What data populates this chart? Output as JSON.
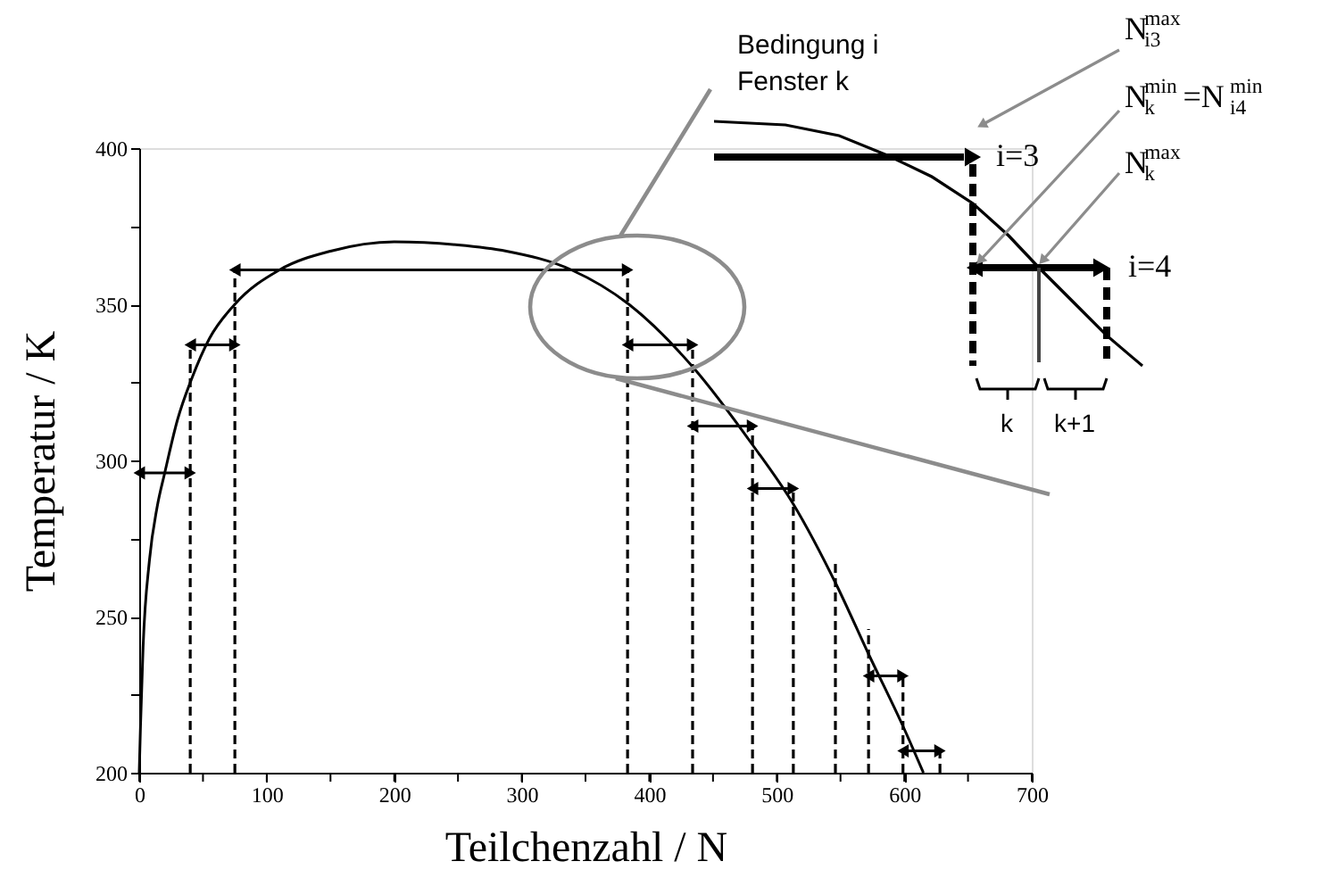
{
  "chart_data": {
    "type": "line",
    "xlabel": "Teilchenzahl / N",
    "ylabel": "Temperatur / K",
    "xlim": [
      0,
      700
    ],
    "ylim": [
      200,
      400
    ],
    "xticks": [
      0,
      {
        "value": 50,
        "label": null
      },
      100,
      {
        "value": 150,
        "label": null
      },
      200,
      {
        "value": 250,
        "label": null
      },
      300,
      {
        "value": 350,
        "label": null
      },
      400,
      {
        "value": 450,
        "label": null
      },
      500,
      {
        "value": 550,
        "label": null
      },
      600,
      {
        "value": 650,
        "label": null
      },
      700
    ],
    "yticks": [
      200,
      {
        "value": 225,
        "label": null
      },
      250,
      {
        "value": 275,
        "label": null
      },
      300,
      {
        "value": 325,
        "label": null
      },
      350,
      {
        "value": 375,
        "label": null
      },
      400
    ],
    "grid": false,
    "series": [
      {
        "color": "#000000",
        "x": [
          0,
          1,
          3,
          8,
          14,
          20,
          30,
          41,
          55,
          75,
          110,
          150,
          200,
          250,
          288,
          339,
          384,
          434,
          481,
          513,
          547,
          572,
          600,
          615
        ],
        "values": [
          200,
          215,
          240,
          268,
          285,
          296,
          313,
          326,
          339,
          350,
          361,
          367,
          370,
          369,
          367,
          361,
          350,
          330,
          305,
          286,
          260,
          238,
          214,
          200
        ]
      },
      {
        "color": "#000000",
        "marker": "triangle",
        "x": [
          0,
          40
        ],
        "values": [
          296,
          296
        ]
      },
      {
        "color": "#000000",
        "marker": "triangle",
        "x": [
          40,
          75
        ],
        "values": [
          337,
          337
        ]
      },
      {
        "color": "#000000",
        "marker": "triangle",
        "x": [
          75,
          383
        ],
        "values": [
          361,
          361
        ]
      },
      {
        "color": "#000000",
        "marker": "triangle",
        "x": [
          383,
          434
        ],
        "values": [
          337,
          337
        ]
      },
      {
        "color": "#000000",
        "marker": "triangle",
        "x": [
          434,
          481
        ],
        "values": [
          311,
          311
        ]
      },
      {
        "color": "#000000",
        "marker": "triangle",
        "x": [
          481,
          513
        ],
        "values": [
          291,
          291
        ]
      },
      {
        "color": "#000000",
        "marker": "triangle",
        "x": [
          572,
          599
        ],
        "values": [
          231,
          231
        ]
      },
      {
        "color": "#000000",
        "marker": "triangle",
        "x": [
          599,
          628
        ],
        "values": [
          207,
          207
        ]
      },
      {
        "color": "#000000",
        "line_style": "dashed",
        "x": [
          40,
          40
        ],
        "values": [
          200,
          337
        ]
      },
      {
        "color": "#000000",
        "line_style": "dashed",
        "x": [
          75,
          75
        ],
        "values": [
          200,
          361
        ]
      },
      {
        "color": "#000000",
        "line_style": "dashed",
        "x": [
          383,
          383
        ],
        "values": [
          200,
          361
        ]
      },
      {
        "color": "#000000",
        "line_style": "dashed",
        "x": [
          434,
          434
        ],
        "values": [
          200,
          337
        ]
      },
      {
        "color": "#000000",
        "line_style": "dashed",
        "x": [
          481,
          481
        ],
        "values": [
          200,
          311
        ]
      },
      {
        "color": "#000000",
        "line_style": "dashed",
        "x": [
          513,
          513
        ],
        "values": [
          200,
          291
        ]
      },
      {
        "color": "#000000",
        "line_style": "dashed",
        "x": [
          546,
          546
        ],
        "values": [
          200,
          268
        ]
      },
      {
        "color": "#000000",
        "line_style": "dashed",
        "x": [
          572,
          572
        ],
        "values": [
          200,
          246
        ]
      },
      {
        "color": "#000000",
        "line_style": "dashed",
        "x": [
          599,
          599
        ],
        "values": [
          200,
          231
        ]
      },
      {
        "color": "#000000",
        "line_style": "dashed",
        "x": [
          628,
          628
        ],
        "values": [
          200,
          207
        ]
      }
    ],
    "annotations": [
      "Bedingung i\nFenster k",
      "i=3",
      "i=4",
      "N$_{i3}$$^{max}$",
      "N$_{k}$$^{min}$=N$_{i4}$$^{min}$",
      "N$_{k}$$^{max}$",
      "k",
      "k+1"
    ]
  }
}
